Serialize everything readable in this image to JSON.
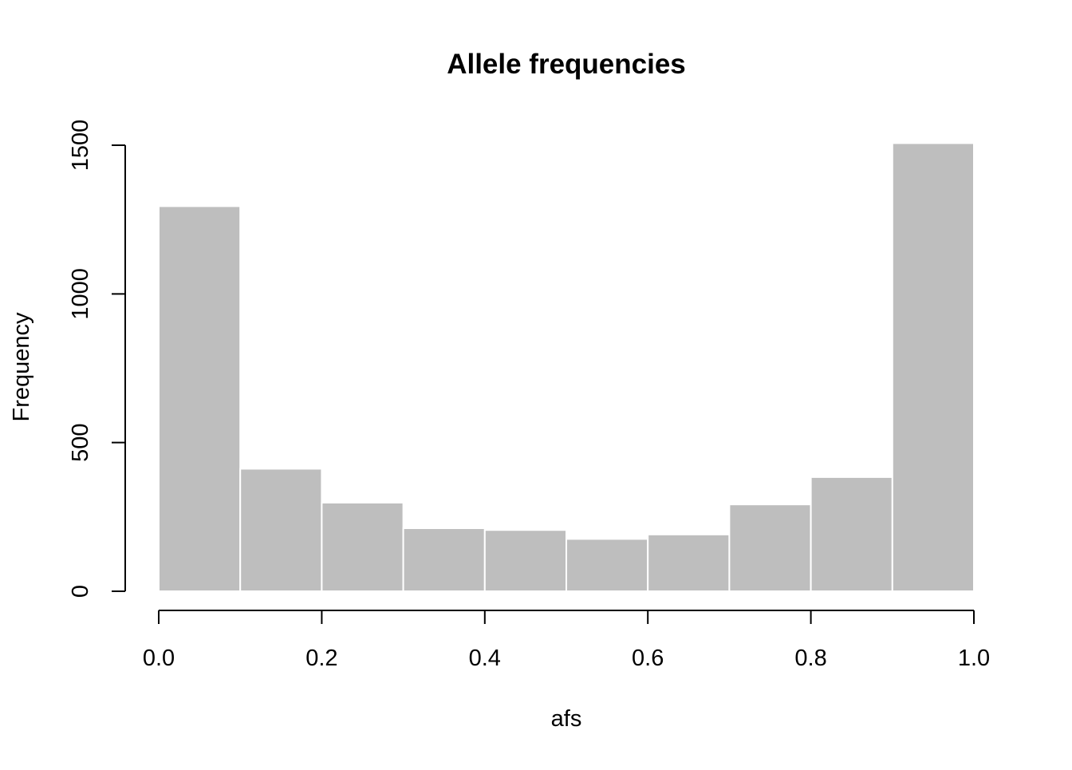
{
  "chart_data": {
    "type": "bar",
    "title": "Allele frequencies",
    "xlabel": "afs",
    "ylabel": "Frequency",
    "bins": [
      {
        "from": 0.0,
        "to": 0.1,
        "value": 1295
      },
      {
        "from": 0.1,
        "to": 0.2,
        "value": 412
      },
      {
        "from": 0.2,
        "to": 0.3,
        "value": 298
      },
      {
        "from": 0.3,
        "to": 0.4,
        "value": 212
      },
      {
        "from": 0.4,
        "to": 0.5,
        "value": 206
      },
      {
        "from": 0.5,
        "to": 0.6,
        "value": 176
      },
      {
        "from": 0.6,
        "to": 0.7,
        "value": 191
      },
      {
        "from": 0.7,
        "to": 0.8,
        "value": 292
      },
      {
        "from": 0.8,
        "to": 0.9,
        "value": 384
      },
      {
        "from": 0.9,
        "to": 1.0,
        "value": 1507
      }
    ],
    "xlim": [
      0.0,
      1.0
    ],
    "ylim": [
      0,
      1500
    ],
    "x_ticks": [
      0.0,
      0.2,
      0.4,
      0.6,
      0.8,
      1.0
    ],
    "x_tick_labels": [
      "0.0",
      "0.2",
      "0.4",
      "0.6",
      "0.8",
      "1.0"
    ],
    "y_ticks": [
      0,
      500,
      1000,
      1500
    ],
    "y_tick_labels": [
      "0",
      "500",
      "1000",
      "1500"
    ],
    "grid": false,
    "legend": "none",
    "colors": {
      "bar_fill": "#bebebe",
      "bar_border": "#ffffff",
      "axis": "#000000",
      "text": "#000000",
      "background": "#ffffff"
    }
  }
}
